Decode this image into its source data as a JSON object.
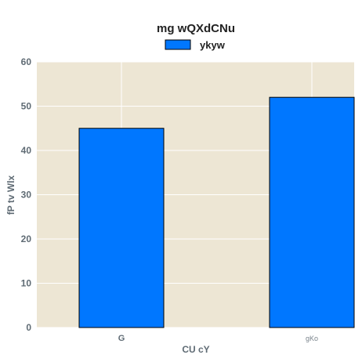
{
  "chart_data": {
    "type": "bar",
    "title": "mg wQXdCNu",
    "xlabel": "CU cY",
    "ylabel": "fP tv Wlx",
    "categories": [
      "G",
      "gKo"
    ],
    "series": [
      {
        "name": "ykyw",
        "values": [
          45,
          52
        ],
        "color": "#0077ff"
      }
    ],
    "ylim": [
      0,
      60
    ],
    "yticks": [
      0,
      10,
      20,
      30,
      40,
      50,
      60
    ],
    "grid": true,
    "legend": "top-center",
    "plot_background": "#ede6d4",
    "bar_edge_color": "#000000"
  }
}
